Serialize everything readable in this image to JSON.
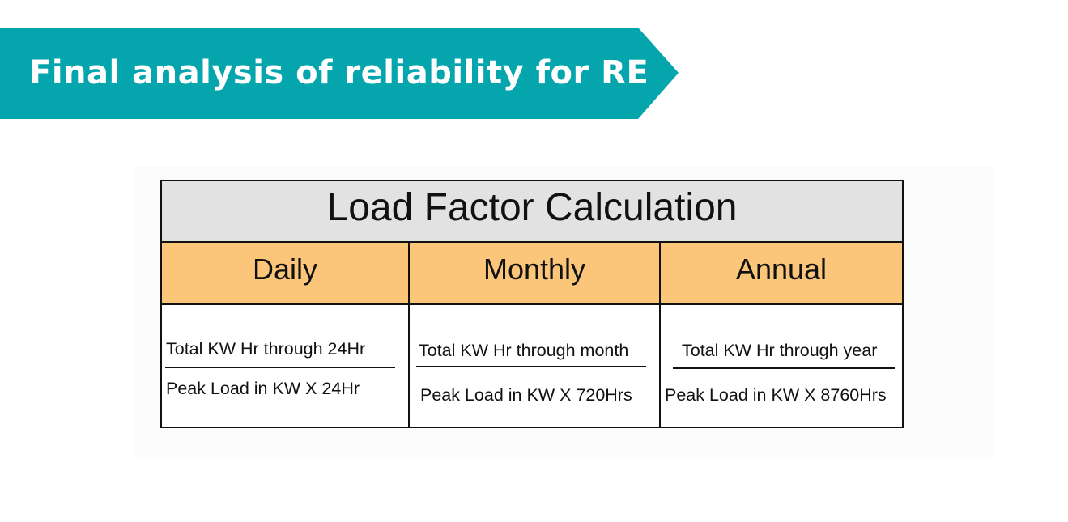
{
  "banner": {
    "title": "Final analysis of reliability for RE"
  },
  "table": {
    "title": "Load Factor Calculation",
    "columns": [
      {
        "period": "Daily",
        "numerator": "Total KW Hr through 24Hr",
        "denominator": "Peak Load in KW X 24Hr"
      },
      {
        "period": "Monthly",
        "numerator": "Total KW Hr through month",
        "denominator": "Peak Load in KW X 720Hrs"
      },
      {
        "period": "Annual",
        "numerator": "Total KW Hr through year",
        "denominator": "Peak Load in KW X 8760Hrs"
      }
    ]
  },
  "colors": {
    "banner": "#05a5ad",
    "header_bg": "#e2e2e2",
    "period_bg": "#fbc57a"
  }
}
